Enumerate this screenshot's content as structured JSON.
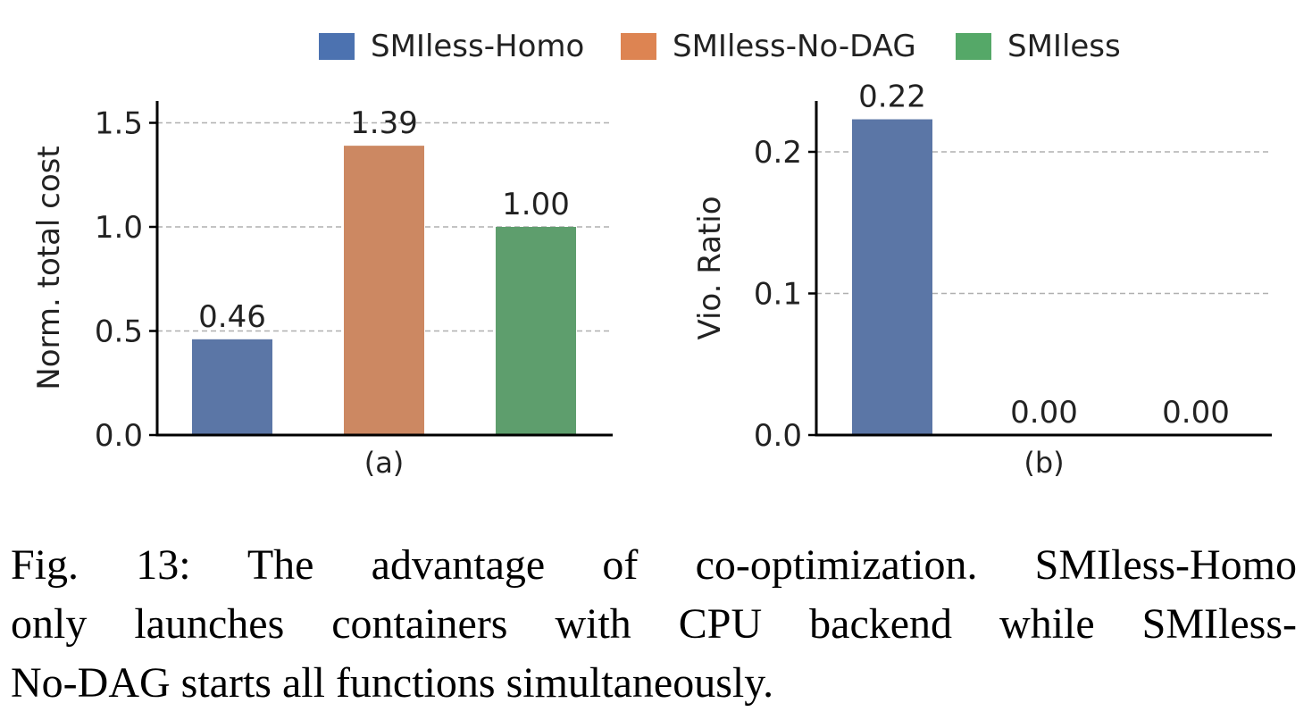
{
  "chart_data": [
    {
      "type": "bar",
      "categories": [
        "SMIless-Homo",
        "SMIless-No-DAG",
        "SMIless"
      ],
      "values": [
        0.46,
        1.39,
        1.0
      ],
      "value_labels": [
        "0.46",
        "1.39",
        "1.00"
      ],
      "xlabel": "(a)",
      "ylabel": "Norm. total cost",
      "ylim": [
        0,
        1.6
      ],
      "yticks": [
        0.0,
        0.5,
        1.0,
        1.5
      ],
      "ytick_labels": [
        "0.0",
        "0.5",
        "1.0",
        "1.5"
      ],
      "grid": "y-dashed",
      "colors": [
        "#5b76a6",
        "#cc8862",
        "#5e9e6d"
      ]
    },
    {
      "type": "bar",
      "categories": [
        "SMIless-Homo",
        "SMIless-No-DAG",
        "SMIless"
      ],
      "values": [
        0.223,
        0.0,
        0.0
      ],
      "value_labels": [
        "0.22",
        "0.00",
        "0.00"
      ],
      "xlabel": "(b)",
      "ylabel": "Vio. Ratio",
      "ylim": [
        0,
        0.235
      ],
      "yticks": [
        0.0,
        0.1,
        0.2
      ],
      "ytick_labels": [
        "0.0",
        "0.1",
        "0.2"
      ],
      "grid": "y-dashed",
      "colors": [
        "#5b76a6",
        "#cc8862",
        "#5e9e6d"
      ]
    }
  ],
  "legend": {
    "placement": "top-center",
    "items": [
      {
        "label": "SMIless-Homo",
        "color": "#4c72b0"
      },
      {
        "label": "SMIless-No-DAG",
        "color": "#dd8452"
      },
      {
        "label": "SMIless",
        "color": "#55a868"
      }
    ]
  },
  "caption": {
    "lines": [
      "Fig. 13: The advantage of co-optimization. SMIless-Homo",
      "only launches containers with CPU backend while SMIless-",
      "No-DAG starts all functions simultaneously."
    ]
  }
}
